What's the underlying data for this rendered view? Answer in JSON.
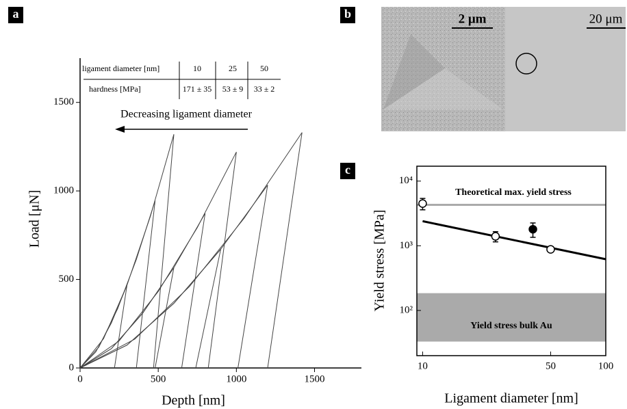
{
  "labels": {
    "a": "a",
    "b": "b",
    "c": "c"
  },
  "image_b": {
    "scale_left": "2 μm",
    "scale_right": "20 μm"
  },
  "chart_data": [
    {
      "type": "line",
      "xlabel": "Depth [nm]",
      "ylabel": "Load [μN]",
      "xlim": [
        0,
        1800
      ],
      "ylim": [
        0,
        1750
      ],
      "xticks": [
        0,
        500,
        1000,
        1500
      ],
      "yticks": [
        0,
        500,
        1000,
        1500
      ],
      "color": "#444",
      "annotation": "Decreasing ligament diameter",
      "table": {
        "header": [
          "ligament diameter [nm]",
          "10",
          "25",
          "50"
        ],
        "row": [
          "hardness [MPa]",
          "171 ± 35",
          "53 ± 9",
          "33 ± 2"
        ]
      },
      "series": [
        {
          "x": [
            0,
            150,
            300,
            450,
            600,
            470
          ],
          "values": [
            0,
            165,
            467,
            857,
            1320,
            0
          ]
        },
        {
          "x": [
            0,
            120,
            240,
            360,
            480,
            360
          ],
          "values": [
            0,
            118,
            334,
            613,
            945,
            0
          ]
        },
        {
          "x": [
            0,
            100,
            200,
            300,
            220
          ],
          "values": [
            0,
            90,
            254,
            467,
            0
          ]
        },
        {
          "x": [
            0,
            250,
            500,
            750,
            1000,
            820
          ],
          "values": [
            0,
            153,
            432,
            793,
            1220,
            0
          ]
        },
        {
          "x": [
            0,
            200,
            400,
            600,
            800,
            650
          ],
          "values": [
            0,
            109,
            309,
            567,
            873,
            0
          ]
        },
        {
          "x": [
            0,
            200,
            400,
            600,
            480
          ],
          "values": [
            0,
            109,
            309,
            567,
            0
          ]
        },
        {
          "x": [
            0,
            350,
            700,
            1050,
            1420,
            1200
          ],
          "values": [
            0,
            163,
            460,
            846,
            1330,
            0
          ]
        },
        {
          "x": [
            0,
            300,
            600,
            900,
            1200,
            1010
          ],
          "values": [
            0,
            129,
            365,
            671,
            1033,
            0
          ]
        },
        {
          "x": [
            0,
            300,
            600,
            900,
            740
          ],
          "values": [
            0,
            129,
            365,
            671,
            0
          ]
        }
      ]
    },
    {
      "type": "scatter",
      "xlabel": "Ligament diameter [nm]",
      "ylabel": "Yield stress [MPa]",
      "xscale": "log",
      "yscale": "log",
      "xlim": [
        9.3,
        100
      ],
      "ylim": [
        20,
        17000
      ],
      "xticks": [
        10,
        50,
        100
      ],
      "yticks": [
        {
          "value": 100,
          "label": "10²"
        },
        {
          "value": 1000,
          "label": "10³"
        },
        {
          "value": 10000,
          "label": "10⁴"
        }
      ],
      "series": [
        {
          "marker": "open",
          "color": "#000",
          "x": [
            10,
            25,
            50
          ],
          "values": [
            4500,
            1400,
            880
          ],
          "errors": [
            900,
            250,
            60
          ]
        },
        {
          "marker": "filled",
          "color": "#000",
          "x": [
            40
          ],
          "values": [
            1800
          ],
          "errors": [
            450
          ]
        }
      ],
      "fit": {
        "x": [
          10,
          100
        ],
        "values": [
          2400,
          620
        ],
        "color": "#000"
      },
      "reference_line": {
        "value": 4300,
        "label": "Theoretical max. yield stress",
        "color": "#aaa"
      },
      "band": {
        "range": [
          33,
          185
        ],
        "label": "Yield stress bulk Au",
        "color": "#aaa"
      }
    }
  ]
}
